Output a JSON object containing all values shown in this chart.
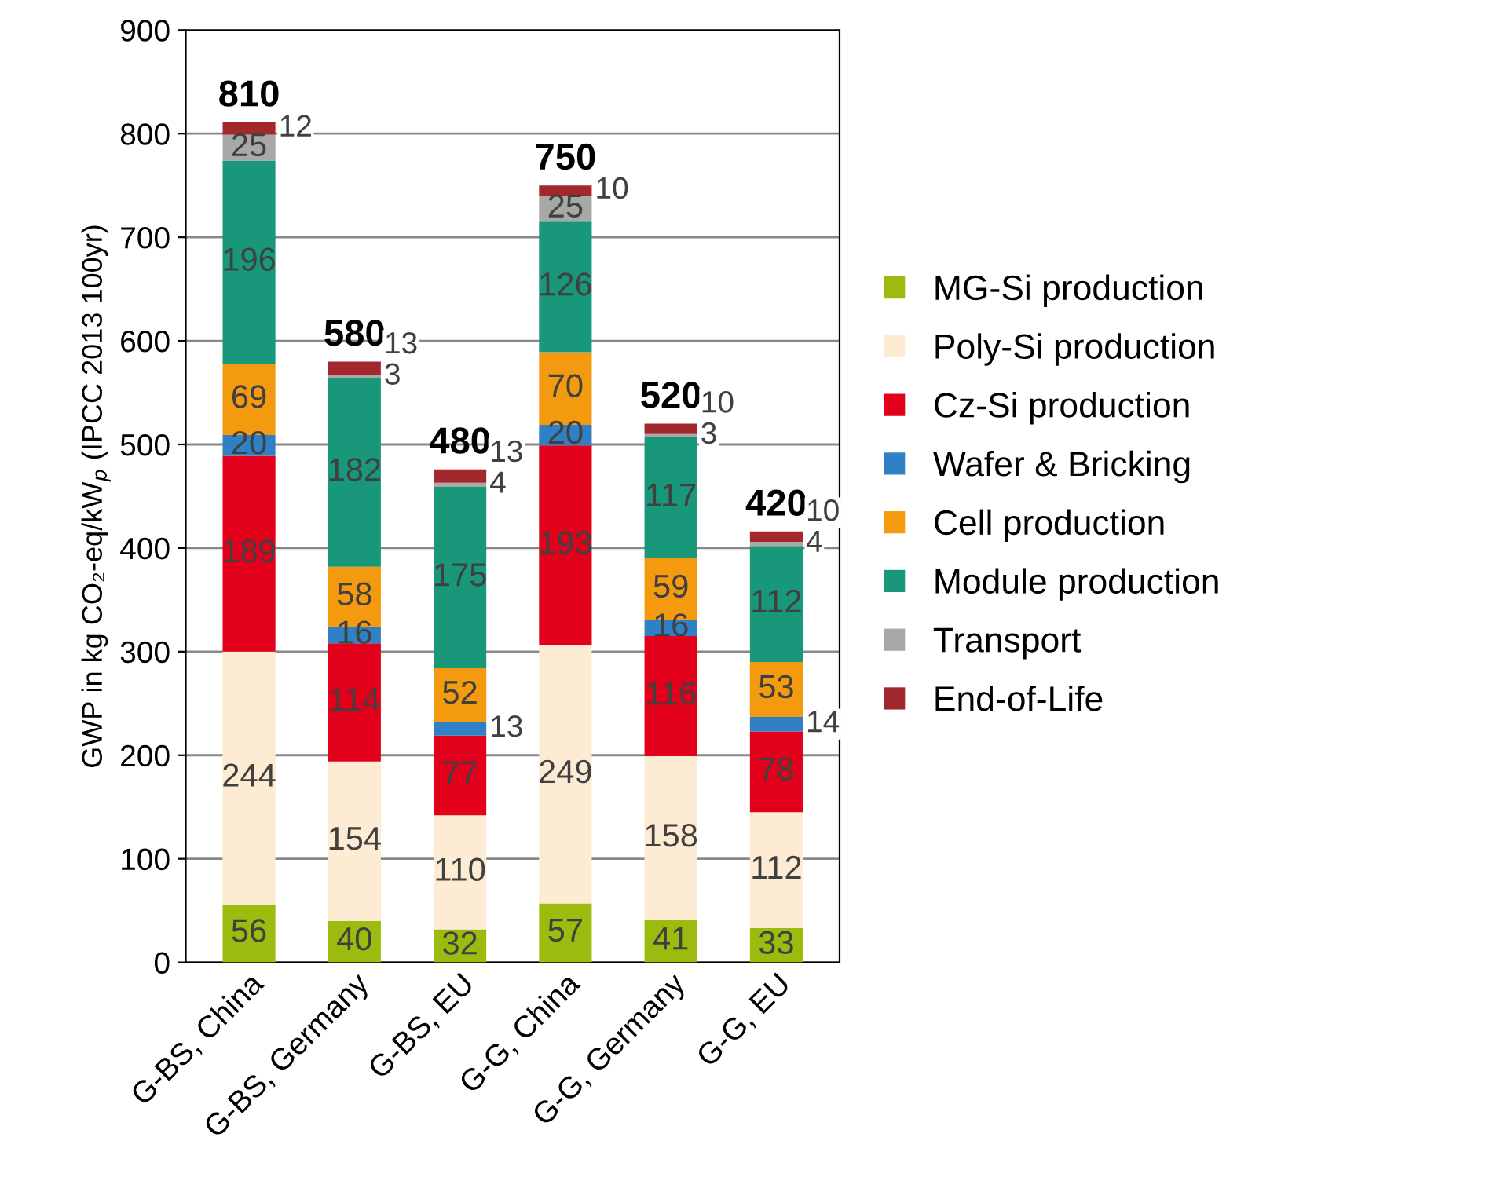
{
  "chart_data": {
    "type": "bar",
    "stacked": true,
    "ylabel": "GWP in kg CO₂-eq/kW$_{p}$ (IPCC 2013 100yr)",
    "categories": [
      "G-BS, China",
      "G-BS, Germany",
      "G-BS, EU",
      "G-G, China",
      "G-G, Germany",
      "G-G, EU"
    ],
    "series": [
      {
        "name": "MG-Si production",
        "color": "#9bbb0e",
        "values": [
          56,
          40,
          32,
          57,
          41,
          33
        ]
      },
      {
        "name": "Poly-Si production",
        "color": "#fdebd3",
        "values": [
          244,
          154,
          110,
          249,
          158,
          112
        ]
      },
      {
        "name": "Cz-Si production",
        "color": "#e3001b",
        "values": [
          189,
          114,
          77,
          193,
          116,
          78
        ]
      },
      {
        "name": "Wafer & Bricking",
        "color": "#2f80c4",
        "values": [
          20,
          16,
          13,
          20,
          16,
          14
        ]
      },
      {
        "name": "Cell production",
        "color": "#f39a0e",
        "values": [
          69,
          58,
          52,
          70,
          59,
          53
        ]
      },
      {
        "name": "Module production",
        "color": "#18977a",
        "values": [
          196,
          182,
          175,
          126,
          117,
          112
        ]
      },
      {
        "name": "Transport",
        "color": "#a8a8a8",
        "values": [
          25,
          3,
          4,
          25,
          3,
          4
        ]
      },
      {
        "name": "End-of-Life",
        "color": "#a3282e",
        "values": [
          12,
          13,
          13,
          10,
          10,
          10
        ]
      }
    ],
    "totals": [
      "810",
      "580",
      "480",
      "750",
      "520",
      "420"
    ],
    "data_labels": true,
    "ylim": [
      0,
      900
    ],
    "yticks": [
      0,
      100,
      200,
      300,
      400,
      500,
      600,
      700,
      800,
      900
    ],
    "grid": "y",
    "legend": "right"
  }
}
